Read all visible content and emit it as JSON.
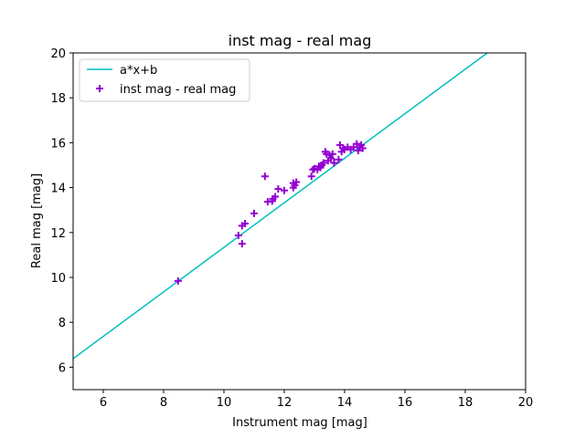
{
  "chart_data": {
    "type": "scatter",
    "title": "inst mag - real mag",
    "xlabel": "Instrument mag [mag]",
    "ylabel": "Real mag [mag]",
    "xlim": [
      5,
      20
    ],
    "ylim": [
      5,
      20
    ],
    "xticks": [
      6,
      8,
      10,
      12,
      14,
      16,
      18,
      20
    ],
    "yticks": [
      6,
      8,
      10,
      12,
      14,
      16,
      18,
      20
    ],
    "grid": false,
    "legend_position": "top-left",
    "fit_line": {
      "name": "a*x+b",
      "a": 0.992,
      "b": 1.42,
      "color": "#00bfbf"
    },
    "series": [
      {
        "name": "inst mag - real mag",
        "color": "#9400d3",
        "points": [
          [
            8.48,
            9.84
          ],
          [
            10.48,
            11.87
          ],
          [
            10.6,
            12.3
          ],
          [
            10.7,
            12.4
          ],
          [
            10.6,
            11.5
          ],
          [
            11.0,
            12.85
          ],
          [
            11.36,
            14.5
          ],
          [
            11.45,
            13.37
          ],
          [
            11.6,
            13.4
          ],
          [
            11.62,
            13.5
          ],
          [
            11.7,
            13.6
          ],
          [
            11.8,
            13.94
          ],
          [
            12.0,
            13.87
          ],
          [
            12.3,
            14.0
          ],
          [
            12.3,
            14.2
          ],
          [
            12.35,
            14.1
          ],
          [
            12.4,
            14.25
          ],
          [
            12.9,
            14.5
          ],
          [
            12.95,
            14.8
          ],
          [
            13.0,
            14.85
          ],
          [
            13.1,
            14.8
          ],
          [
            13.2,
            14.9
          ],
          [
            13.15,
            14.95
          ],
          [
            13.25,
            15.0
          ],
          [
            13.3,
            15.1
          ],
          [
            13.36,
            15.6
          ],
          [
            13.4,
            15.5
          ],
          [
            13.5,
            15.45
          ],
          [
            13.55,
            15.3
          ],
          [
            13.45,
            15.2
          ],
          [
            13.6,
            15.5
          ],
          [
            13.8,
            15.25
          ],
          [
            13.85,
            15.9
          ],
          [
            13.95,
            15.75
          ],
          [
            13.9,
            15.6
          ],
          [
            14.0,
            15.7
          ],
          [
            14.2,
            15.7
          ],
          [
            14.3,
            15.8
          ],
          [
            14.4,
            15.95
          ],
          [
            14.45,
            15.65
          ],
          [
            14.55,
            15.9
          ],
          [
            14.6,
            15.75
          ],
          [
            14.1,
            15.8
          ],
          [
            13.65,
            15.1
          ],
          [
            14.5,
            15.8
          ]
        ]
      }
    ]
  }
}
